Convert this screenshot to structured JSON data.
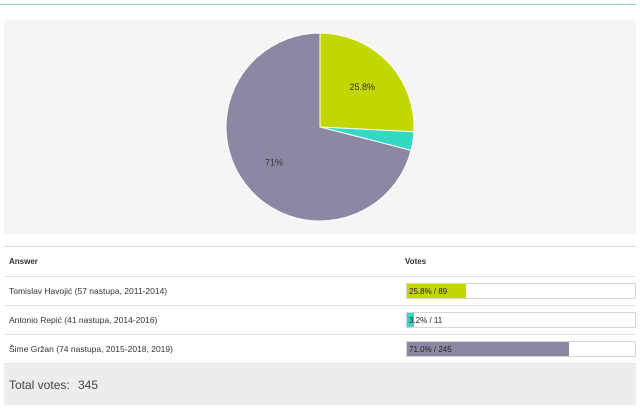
{
  "chart_data": {
    "type": "pie",
    "categories": [
      "Tomislav Havojić (57 nastupa, 2011-2014)",
      "Antonio Repić (41 nastupa, 2014-2016)",
      "Šime Gržan (74 nastupa, 2015-2018, 2019)"
    ],
    "values": [
      25.8,
      3.2,
      71.0
    ],
    "slice_labels": [
      "25.8%",
      "",
      "71%"
    ],
    "colors": [
      "#c2d600",
      "#35d7c5",
      "#8c88a3"
    ]
  },
  "table": {
    "headers": {
      "answer": "Answer",
      "votes": "Votes"
    },
    "rows": [
      {
        "answer": "Tomislav Havojić (57 nastupa, 2011-2014)",
        "vote_text": "25.8% / 89",
        "percent": 25.8,
        "color": "#c2d600"
      },
      {
        "answer": "Antonio Repić (41 nastupa, 2014-2016)",
        "vote_text": "3.2% / 11",
        "percent": 3.2,
        "color": "#35d7c5"
      },
      {
        "answer": "Šime Gržan (74 nastupa, 2015-2018, 2019)",
        "vote_text": "71.0% / 245",
        "percent": 71.0,
        "color": "#8c88a3"
      }
    ]
  },
  "total": {
    "label": "Total votes:",
    "value": "345"
  }
}
